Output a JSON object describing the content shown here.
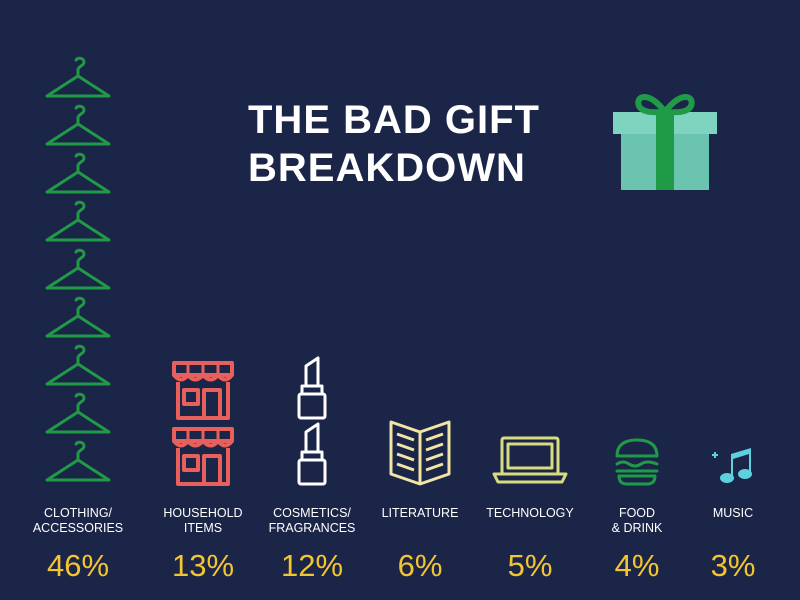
{
  "title": {
    "line1": "THE BAD GIFT",
    "line2": "BREAKDOWN"
  },
  "colors": {
    "background": "#1b2548",
    "title": "#ffffff",
    "label": "#ffffff",
    "percent": "#f2c531",
    "hanger": "#1f9b48",
    "store": "#e8605c",
    "lipstick": "#ffffff",
    "book": "#f1e5a6",
    "laptop": "#d8dc7e",
    "burger": "#1f9b48",
    "music": "#5fd0de",
    "gift_box": "#6bc4b0",
    "gift_ribbon": "#1f9b48"
  },
  "chart_data": {
    "type": "bar",
    "title": "THE BAD GIFT BREAKDOWN",
    "categories": [
      "CLOTHING/\nACCESSORIES",
      "HOUSEHOLD\nITEMS",
      "COSMETICS/\nFRAGRANCES",
      "LITERATURE",
      "TECHNOLOGY",
      "FOOD\n& DRINK",
      "MUSIC"
    ],
    "values": [
      46,
      13,
      12,
      6,
      5,
      4,
      3
    ],
    "value_labels": [
      "46%",
      "13%",
      "12%",
      "6%",
      "5%",
      "4%",
      "3%"
    ],
    "icons": [
      "hanger-icon",
      "store-icon",
      "lipstick-icon",
      "book-icon",
      "laptop-icon",
      "burger-icon",
      "music-note-icon"
    ],
    "icon_counts": [
      9,
      2,
      2,
      1,
      1,
      1,
      1
    ]
  }
}
